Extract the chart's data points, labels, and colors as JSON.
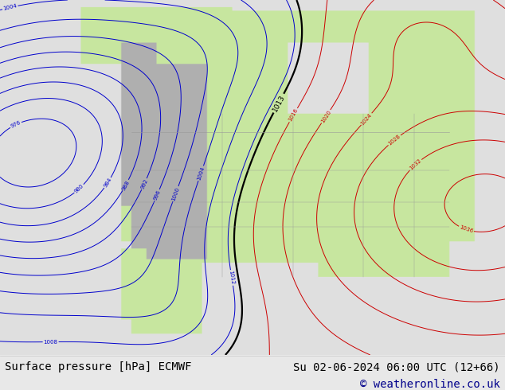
{
  "title_left": "Surface pressure [hPa] ECMWF",
  "title_right": "Su 02-06-2024 06:00 UTC (12+66)",
  "copyright": "© weatheronline.co.uk",
  "bg_color": "#e8e8e8",
  "map_land_color_r": 0.784,
  "map_land_color_g": 0.902,
  "map_land_color_b": 0.627,
  "map_ocean_r": 0.878,
  "map_ocean_g": 0.878,
  "map_ocean_b": 0.878,
  "map_mountain_r": 0.69,
  "map_mountain_g": 0.69,
  "map_mountain_b": 0.69,
  "contour_blue_color": "#0000cc",
  "contour_red_color": "#cc0000",
  "contour_black_color": "#000000",
  "footer_bg": "#ffffff",
  "footer_text_color": "#000000",
  "copyright_color": "#00008b",
  "font_size_footer": 10,
  "font_size_copyright": 10
}
